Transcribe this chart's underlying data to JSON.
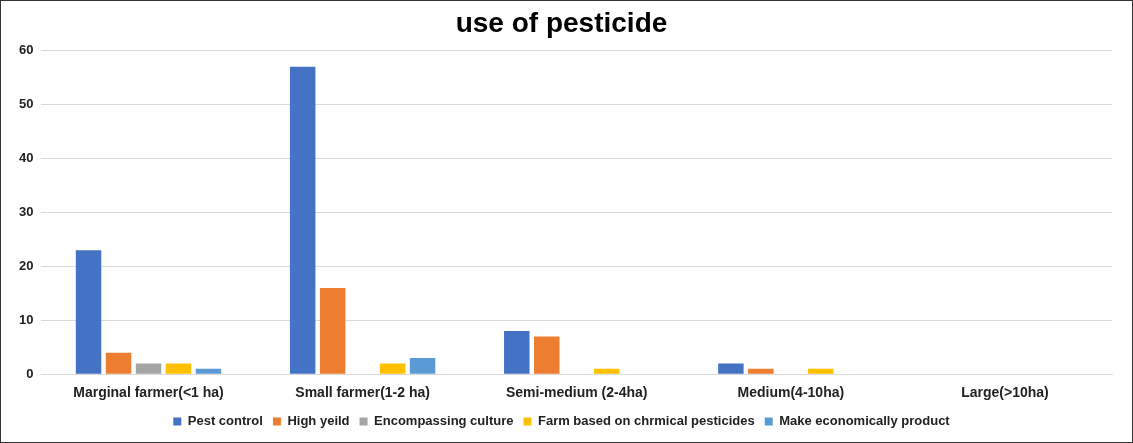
{
  "chart_data": {
    "type": "bar",
    "title": "use of pesticide",
    "categories": [
      "Marginal farmer(<1 ha)",
      "Small farmer(1-2 ha)",
      "Semi-medium (2-4ha)",
      "Medium(4-10ha)",
      "Large(>10ha)"
    ],
    "series": [
      {
        "name": "Pest control",
        "color": "#4472c4",
        "values": [
          23,
          57,
          8,
          2,
          0
        ]
      },
      {
        "name": "High yeild",
        "color": "#ed7d31",
        "values": [
          4,
          16,
          7,
          1,
          0
        ]
      },
      {
        "name": "Encompassing culture",
        "color": "#a5a5a5",
        "values": [
          2,
          0,
          0,
          0,
          0
        ]
      },
      {
        "name": "Farm based on chrmical pesticides",
        "color": "#ffc000",
        "values": [
          2,
          2,
          1,
          1,
          0
        ]
      },
      {
        "name": "Make economically product",
        "color": "#5b9bd5",
        "values": [
          1,
          3,
          0,
          0,
          0
        ]
      }
    ],
    "ylim": [
      0,
      60
    ],
    "yticks": [
      0,
      10,
      20,
      30,
      40,
      50,
      60
    ],
    "grid": "y",
    "legend": "bottom"
  }
}
